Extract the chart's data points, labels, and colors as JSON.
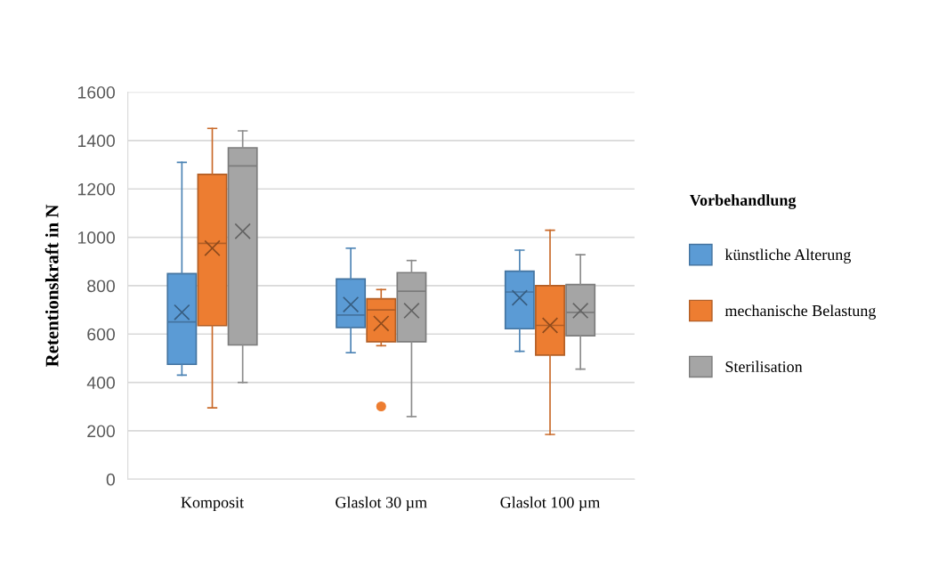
{
  "chart_data": {
    "type": "box",
    "ylabel": "Retentionskraft in N",
    "legend_title": "Vorbehandlung",
    "categories": [
      "Komposit",
      "Glaslot 30 µm",
      "Glaslot 100 µm"
    ],
    "ylim": [
      0,
      1600
    ],
    "yticks": [
      0,
      200,
      400,
      600,
      800,
      1000,
      1200,
      1400,
      1600
    ],
    "grid": "y",
    "legend": "right",
    "series": [
      {
        "name": "künstliche Alterung",
        "color": "#5b9bd5",
        "boxes": [
          {
            "low": 430,
            "q1": 475,
            "median": 650,
            "q3": 850,
            "high": 1310,
            "mean": 690
          },
          {
            "low": 523,
            "q1": 627,
            "median": 679,
            "q3": 828,
            "high": 955,
            "mean": 722
          },
          {
            "low": 529,
            "q1": 622,
            "median": 774,
            "q3": 860,
            "high": 947,
            "mean": 750
          }
        ]
      },
      {
        "name": "mechanische Belastung",
        "color": "#ed7d31",
        "boxes": [
          {
            "low": 295,
            "q1": 635,
            "median": 975,
            "q3": 1260,
            "high": 1450,
            "mean": 955
          },
          {
            "low": 552,
            "q1": 568,
            "median": 700,
            "q3": 746,
            "high": 784,
            "mean": 644,
            "outliers": [
              301
            ]
          },
          {
            "low": 185,
            "q1": 513,
            "median": 636,
            "q3": 800,
            "high": 1029,
            "mean": 636
          }
        ]
      },
      {
        "name": "Sterilisation",
        "color": "#a5a5a5",
        "boxes": [
          {
            "low": 400,
            "q1": 555,
            "median": 1295,
            "q3": 1370,
            "high": 1440,
            "mean": 1025
          },
          {
            "low": 259,
            "q1": 568,
            "median": 777,
            "q3": 854,
            "high": 904,
            "mean": 697
          },
          {
            "low": 455,
            "q1": 593,
            "median": 690,
            "q3": 805,
            "high": 928,
            "mean": 697
          }
        ]
      }
    ]
  }
}
